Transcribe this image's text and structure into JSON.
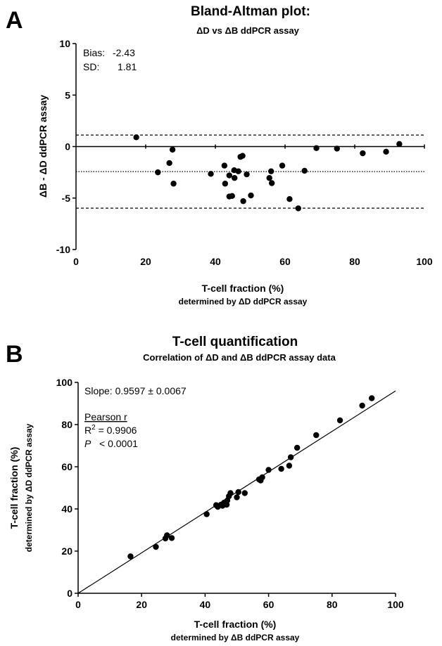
{
  "chart_data": [
    {
      "type": "scatter",
      "panel_label": "A",
      "title": "Bland-Altman plot:",
      "subtitle": "ΔD vs ΔB ddPCR assay",
      "xlabel": "T-cell fraction (%)",
      "xlabel_sub": "determined by ΔD ddPCR assay",
      "ylabel": "ΔB - ΔD ddPCR assay",
      "xlim": [
        0,
        100
      ],
      "ylim": [
        -10,
        10
      ],
      "xticks": [
        0,
        20,
        40,
        60,
        80,
        100
      ],
      "yticks": [
        -10,
        -5,
        0,
        5,
        10
      ],
      "annotations": {
        "bias_label": "Bias:",
        "bias_value": "-2.43",
        "sd_label": "SD:",
        "sd_value": "1.81"
      },
      "reference_lines": [
        {
          "y": 0,
          "style": "solid"
        },
        {
          "y": -2.43,
          "style": "dotted"
        },
        {
          "y": 1.12,
          "style": "dashed"
        },
        {
          "y": -5.98,
          "style": "dashed"
        }
      ],
      "points": [
        [
          17.3,
          0.9
        ],
        [
          23.5,
          -2.5
        ],
        [
          26.8,
          -1.6
        ],
        [
          27.7,
          -0.3
        ],
        [
          28.0,
          -3.6
        ],
        [
          38.7,
          -2.65
        ],
        [
          42.6,
          -1.85
        ],
        [
          42.8,
          -3.6
        ],
        [
          44.0,
          -2.8
        ],
        [
          44.0,
          -4.85
        ],
        [
          44.8,
          -4.8
        ],
        [
          45.4,
          -2.3
        ],
        [
          45.5,
          -3.05
        ],
        [
          46.6,
          -2.4
        ],
        [
          47.2,
          -1.0
        ],
        [
          47.8,
          -0.9
        ],
        [
          48.0,
          -5.3
        ],
        [
          49.0,
          -2.7
        ],
        [
          50.2,
          -4.75
        ],
        [
          55.5,
          -3.05
        ],
        [
          56.0,
          -2.4
        ],
        [
          56.2,
          -3.55
        ],
        [
          59.2,
          -1.85
        ],
        [
          61.3,
          -5.1
        ],
        [
          63.8,
          -6.0
        ],
        [
          65.6,
          -2.35
        ],
        [
          69.0,
          -0.15
        ],
        [
          74.9,
          -0.2
        ],
        [
          82.3,
          -0.65
        ],
        [
          89.0,
          -0.5
        ],
        [
          92.8,
          0.25
        ]
      ]
    },
    {
      "type": "scatter",
      "panel_label": "B",
      "title": "T-cell quantification",
      "subtitle": "Correlation of ΔD and ΔB ddPCR assay data",
      "xlabel": "T-cell fraction (%)",
      "xlabel_sub": "determined by ΔB ddPCR assay",
      "ylabel": "T-cell fraction (%)",
      "ylabel_sub": "determined by ΔD ddPCR assay",
      "xlim": [
        0,
        100
      ],
      "ylim": [
        0,
        100
      ],
      "xticks": [
        0,
        20,
        40,
        60,
        80,
        100
      ],
      "yticks": [
        0,
        20,
        40,
        60,
        80,
        100
      ],
      "annotations": {
        "slope": "Slope: 0.9597 ± 0.0067",
        "pearson": "Pearson r",
        "r2_prefix": "R",
        "r2_sup": "2",
        "r2_value": " = 0.9906",
        "p_symbol": "P",
        "p_value": "< 0.0001"
      },
      "regression_line": {
        "slope": 0.9597,
        "intercept": 0
      },
      "points": [
        [
          16.5,
          17.5
        ],
        [
          24.5,
          22.0
        ],
        [
          27.5,
          26.0
        ],
        [
          28.0,
          27.5
        ],
        [
          29.5,
          26.2
        ],
        [
          40.5,
          37.5
        ],
        [
          43.5,
          41.8
        ],
        [
          44.0,
          41.0
        ],
        [
          45.0,
          42.0
        ],
        [
          45.5,
          41.5
        ],
        [
          46.0,
          43.0
        ],
        [
          46.5,
          42.5
        ],
        [
          47.0,
          44.0
        ],
        [
          46.8,
          42.0
        ],
        [
          47.5,
          46.0
        ],
        [
          48.0,
          47.5
        ],
        [
          50.0,
          45.5
        ],
        [
          50.5,
          48.0
        ],
        [
          52.5,
          47.5
        ],
        [
          57.0,
          54.0
        ],
        [
          58.0,
          55.0
        ],
        [
          57.5,
          53.5
        ],
        [
          60.0,
          58.5
        ],
        [
          64.0,
          59.0
        ],
        [
          66.5,
          60.5
        ],
        [
          67.0,
          64.5
        ],
        [
          69.0,
          69.0
        ],
        [
          75.0,
          75.0
        ],
        [
          82.5,
          82.0
        ],
        [
          89.5,
          89.0
        ],
        [
          92.5,
          92.5
        ]
      ]
    }
  ]
}
